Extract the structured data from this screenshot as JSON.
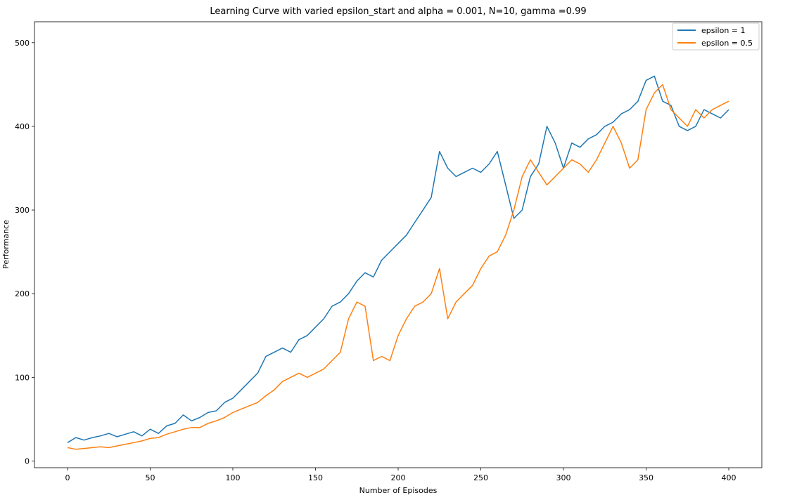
{
  "chart_data": {
    "type": "line",
    "title": "Learning Curve with varied epsilon_start and alpha = 0.001, N=10, gamma =0.99",
    "xlabel": "Number of Episodes",
    "ylabel": "Performance",
    "xlim": [
      -20,
      420
    ],
    "ylim": [
      -8,
      525
    ],
    "xticks": [
      0,
      50,
      100,
      150,
      200,
      250,
      300,
      350,
      400
    ],
    "yticks": [
      0,
      100,
      200,
      300,
      400,
      500
    ],
    "grid": false,
    "legend_position": "top-right",
    "series": [
      {
        "name": "epsilon = 1",
        "color": "#1f77b4",
        "x": [
          0,
          5,
          10,
          15,
          20,
          25,
          30,
          35,
          40,
          45,
          50,
          55,
          60,
          65,
          70,
          75,
          80,
          85,
          90,
          95,
          100,
          105,
          110,
          115,
          120,
          125,
          130,
          135,
          140,
          145,
          150,
          155,
          160,
          165,
          170,
          175,
          180,
          185,
          190,
          195,
          200,
          205,
          210,
          215,
          220,
          225,
          230,
          235,
          240,
          245,
          250,
          255,
          260,
          265,
          270,
          275,
          280,
          285,
          290,
          295,
          300,
          305,
          310,
          315,
          320,
          325,
          330,
          335,
          340,
          345,
          350,
          355,
          360,
          365,
          370,
          375,
          380,
          385,
          390,
          395,
          400
        ],
        "values": [
          22,
          28,
          25,
          28,
          30,
          33,
          29,
          32,
          35,
          30,
          38,
          33,
          42,
          45,
          55,
          48,
          52,
          58,
          60,
          70,
          75,
          85,
          95,
          105,
          125,
          130,
          135,
          130,
          145,
          150,
          160,
          170,
          185,
          190,
          200,
          215,
          225,
          220,
          240,
          250,
          260,
          270,
          285,
          300,
          315,
          370,
          350,
          340,
          345,
          350,
          345,
          355,
          370,
          330,
          290,
          300,
          340,
          355,
          400,
          380,
          350,
          380,
          375,
          385,
          390,
          400,
          405,
          415,
          420,
          430,
          455,
          460,
          430,
          425,
          400,
          395,
          400,
          420,
          415,
          410,
          420
        ]
      },
      {
        "name": "epsilon = 0.5",
        "color": "#ff7f0e",
        "x": [
          0,
          5,
          10,
          15,
          20,
          25,
          30,
          35,
          40,
          45,
          50,
          55,
          60,
          65,
          70,
          75,
          80,
          85,
          90,
          95,
          100,
          105,
          110,
          115,
          120,
          125,
          130,
          135,
          140,
          145,
          150,
          155,
          160,
          165,
          170,
          175,
          180,
          185,
          190,
          195,
          200,
          205,
          210,
          215,
          220,
          225,
          230,
          235,
          240,
          245,
          250,
          255,
          260,
          265,
          270,
          275,
          280,
          285,
          290,
          295,
          300,
          305,
          310,
          315,
          320,
          325,
          330,
          335,
          340,
          345,
          350,
          355,
          360,
          365,
          370,
          375,
          380,
          385,
          390,
          395,
          400
        ],
        "values": [
          16,
          14,
          15,
          16,
          17,
          16,
          18,
          20,
          22,
          24,
          27,
          28,
          32,
          35,
          38,
          40,
          40,
          45,
          48,
          52,
          58,
          62,
          66,
          70,
          78,
          85,
          95,
          100,
          105,
          100,
          105,
          110,
          120,
          130,
          170,
          190,
          185,
          120,
          125,
          120,
          150,
          170,
          185,
          190,
          200,
          230,
          170,
          190,
          200,
          210,
          230,
          245,
          250,
          270,
          300,
          340,
          360,
          345,
          330,
          340,
          350,
          360,
          355,
          345,
          360,
          380,
          400,
          380,
          350,
          360,
          420,
          440,
          450,
          420,
          410,
          400,
          420,
          410,
          420,
          425,
          430
        ]
      }
    ]
  }
}
